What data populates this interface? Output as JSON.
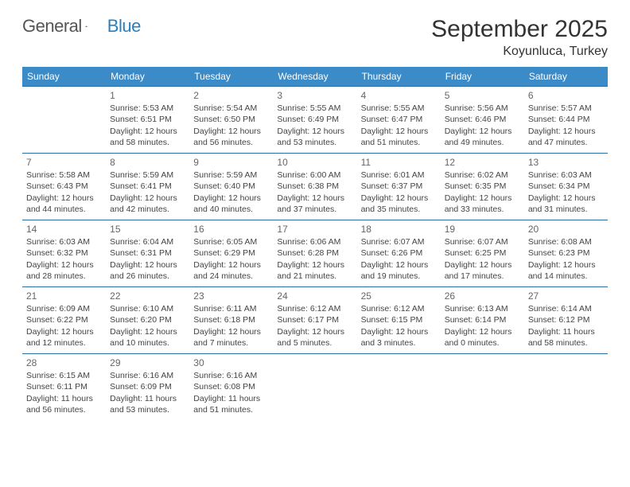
{
  "brand": {
    "name1": "General",
    "name2": "Blue"
  },
  "title": "September 2025",
  "location": "Koyunluca, Turkey",
  "day_headers": [
    "Sunday",
    "Monday",
    "Tuesday",
    "Wednesday",
    "Thursday",
    "Friday",
    "Saturday"
  ],
  "colors": {
    "header_bg": "#3b8bc8",
    "header_text": "#ffffff",
    "rule": "#2a6fa5",
    "text": "#444444",
    "daynum": "#666666"
  },
  "weeks": [
    [
      null,
      {
        "n": "1",
        "sr": "Sunrise: 5:53 AM",
        "ss": "Sunset: 6:51 PM",
        "dl": "Daylight: 12 hours and 58 minutes."
      },
      {
        "n": "2",
        "sr": "Sunrise: 5:54 AM",
        "ss": "Sunset: 6:50 PM",
        "dl": "Daylight: 12 hours and 56 minutes."
      },
      {
        "n": "3",
        "sr": "Sunrise: 5:55 AM",
        "ss": "Sunset: 6:49 PM",
        "dl": "Daylight: 12 hours and 53 minutes."
      },
      {
        "n": "4",
        "sr": "Sunrise: 5:55 AM",
        "ss": "Sunset: 6:47 PM",
        "dl": "Daylight: 12 hours and 51 minutes."
      },
      {
        "n": "5",
        "sr": "Sunrise: 5:56 AM",
        "ss": "Sunset: 6:46 PM",
        "dl": "Daylight: 12 hours and 49 minutes."
      },
      {
        "n": "6",
        "sr": "Sunrise: 5:57 AM",
        "ss": "Sunset: 6:44 PM",
        "dl": "Daylight: 12 hours and 47 minutes."
      }
    ],
    [
      {
        "n": "7",
        "sr": "Sunrise: 5:58 AM",
        "ss": "Sunset: 6:43 PM",
        "dl": "Daylight: 12 hours and 44 minutes."
      },
      {
        "n": "8",
        "sr": "Sunrise: 5:59 AM",
        "ss": "Sunset: 6:41 PM",
        "dl": "Daylight: 12 hours and 42 minutes."
      },
      {
        "n": "9",
        "sr": "Sunrise: 5:59 AM",
        "ss": "Sunset: 6:40 PM",
        "dl": "Daylight: 12 hours and 40 minutes."
      },
      {
        "n": "10",
        "sr": "Sunrise: 6:00 AM",
        "ss": "Sunset: 6:38 PM",
        "dl": "Daylight: 12 hours and 37 minutes."
      },
      {
        "n": "11",
        "sr": "Sunrise: 6:01 AM",
        "ss": "Sunset: 6:37 PM",
        "dl": "Daylight: 12 hours and 35 minutes."
      },
      {
        "n": "12",
        "sr": "Sunrise: 6:02 AM",
        "ss": "Sunset: 6:35 PM",
        "dl": "Daylight: 12 hours and 33 minutes."
      },
      {
        "n": "13",
        "sr": "Sunrise: 6:03 AM",
        "ss": "Sunset: 6:34 PM",
        "dl": "Daylight: 12 hours and 31 minutes."
      }
    ],
    [
      {
        "n": "14",
        "sr": "Sunrise: 6:03 AM",
        "ss": "Sunset: 6:32 PM",
        "dl": "Daylight: 12 hours and 28 minutes."
      },
      {
        "n": "15",
        "sr": "Sunrise: 6:04 AM",
        "ss": "Sunset: 6:31 PM",
        "dl": "Daylight: 12 hours and 26 minutes."
      },
      {
        "n": "16",
        "sr": "Sunrise: 6:05 AM",
        "ss": "Sunset: 6:29 PM",
        "dl": "Daylight: 12 hours and 24 minutes."
      },
      {
        "n": "17",
        "sr": "Sunrise: 6:06 AM",
        "ss": "Sunset: 6:28 PM",
        "dl": "Daylight: 12 hours and 21 minutes."
      },
      {
        "n": "18",
        "sr": "Sunrise: 6:07 AM",
        "ss": "Sunset: 6:26 PM",
        "dl": "Daylight: 12 hours and 19 minutes."
      },
      {
        "n": "19",
        "sr": "Sunrise: 6:07 AM",
        "ss": "Sunset: 6:25 PM",
        "dl": "Daylight: 12 hours and 17 minutes."
      },
      {
        "n": "20",
        "sr": "Sunrise: 6:08 AM",
        "ss": "Sunset: 6:23 PM",
        "dl": "Daylight: 12 hours and 14 minutes."
      }
    ],
    [
      {
        "n": "21",
        "sr": "Sunrise: 6:09 AM",
        "ss": "Sunset: 6:22 PM",
        "dl": "Daylight: 12 hours and 12 minutes."
      },
      {
        "n": "22",
        "sr": "Sunrise: 6:10 AM",
        "ss": "Sunset: 6:20 PM",
        "dl": "Daylight: 12 hours and 10 minutes."
      },
      {
        "n": "23",
        "sr": "Sunrise: 6:11 AM",
        "ss": "Sunset: 6:18 PM",
        "dl": "Daylight: 12 hours and 7 minutes."
      },
      {
        "n": "24",
        "sr": "Sunrise: 6:12 AM",
        "ss": "Sunset: 6:17 PM",
        "dl": "Daylight: 12 hours and 5 minutes."
      },
      {
        "n": "25",
        "sr": "Sunrise: 6:12 AM",
        "ss": "Sunset: 6:15 PM",
        "dl": "Daylight: 12 hours and 3 minutes."
      },
      {
        "n": "26",
        "sr": "Sunrise: 6:13 AM",
        "ss": "Sunset: 6:14 PM",
        "dl": "Daylight: 12 hours and 0 minutes."
      },
      {
        "n": "27",
        "sr": "Sunrise: 6:14 AM",
        "ss": "Sunset: 6:12 PM",
        "dl": "Daylight: 11 hours and 58 minutes."
      }
    ],
    [
      {
        "n": "28",
        "sr": "Sunrise: 6:15 AM",
        "ss": "Sunset: 6:11 PM",
        "dl": "Daylight: 11 hours and 56 minutes."
      },
      {
        "n": "29",
        "sr": "Sunrise: 6:16 AM",
        "ss": "Sunset: 6:09 PM",
        "dl": "Daylight: 11 hours and 53 minutes."
      },
      {
        "n": "30",
        "sr": "Sunrise: 6:16 AM",
        "ss": "Sunset: 6:08 PM",
        "dl": "Daylight: 11 hours and 51 minutes."
      },
      null,
      null,
      null,
      null
    ]
  ]
}
